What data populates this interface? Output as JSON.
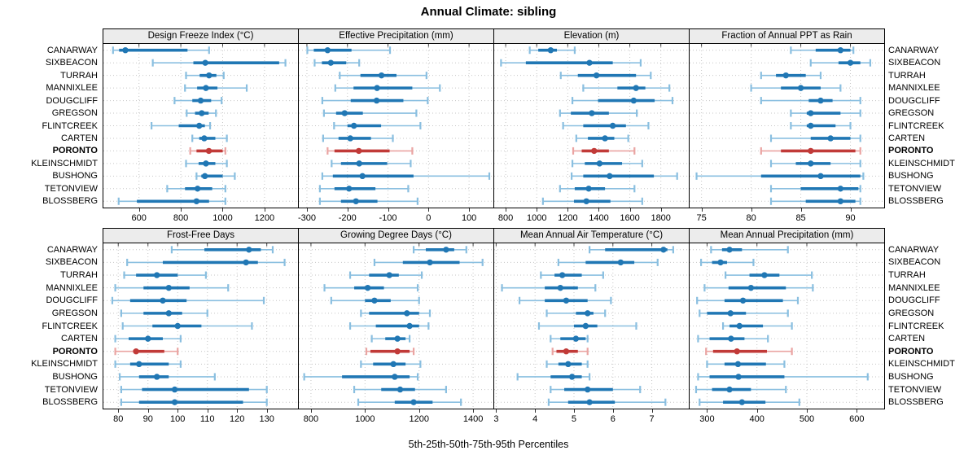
{
  "title": "Annual Climate: sibling",
  "xlabel": "5th-25th-50th-75th-95th Percentiles",
  "highlight_station": "PORONTO",
  "colors": {
    "series": "#2077b4",
    "series_light": "#8abfe0",
    "highlight": "#c13a38",
    "highlight_light": "#eaa4a2",
    "strip_bg": "#ececec",
    "grid": "#c6c6c6",
    "axis_text": "#000000"
  },
  "chart_data": {
    "type": "dotplot-percentiles",
    "percentiles": [
      5,
      25,
      50,
      75,
      95
    ],
    "stations": [
      "CANARWAY",
      "SIXBEACON",
      "TURRAH",
      "MANNIXLEE",
      "DOUGCLIFF",
      "GREGSON",
      "FLINTCREEK",
      "CARTEN",
      "PORONTO",
      "KLEINSCHMIDT",
      "BUSHONG",
      "TETONVIEW",
      "BLOSSBERG"
    ],
    "panels": [
      {
        "title": "Design Freeze Index (°C)",
        "row": 0,
        "col": 0,
        "xlim": [
          430,
          1360
        ],
        "ticks": [
          600,
          800,
          1000,
          1200
        ],
        "values": [
          [
            476,
            505,
            535,
            832,
            935
          ],
          [
            666,
            860,
            917,
            1270,
            1300
          ],
          [
            825,
            890,
            935,
            970,
            1005
          ],
          [
            820,
            878,
            920,
            975,
            1115
          ],
          [
            770,
            855,
            895,
            945,
            995
          ],
          [
            828,
            868,
            900,
            933,
            968
          ],
          [
            660,
            790,
            888,
            915,
            940
          ],
          [
            855,
            888,
            912,
            965,
            1020
          ],
          [
            845,
            875,
            934,
            1000,
            1013
          ],
          [
            825,
            885,
            920,
            965,
            1020
          ],
          [
            875,
            898,
            915,
            1000,
            1058
          ],
          [
            735,
            820,
            880,
            950,
            1013
          ],
          [
            503,
            590,
            875,
            935,
            1013
          ]
        ]
      },
      {
        "title": "Effective Precipitation (mm)",
        "row": 0,
        "col": 1,
        "xlim": [
          -320,
          160
        ],
        "ticks": [
          -300,
          -200,
          -100,
          0,
          100
        ],
        "values": [
          [
            -299,
            -283,
            -249,
            -190,
            -95
          ],
          [
            -281,
            -263,
            -241,
            -203,
            -171
          ],
          [
            -219,
            -168,
            -116,
            -79,
            -5
          ],
          [
            -230,
            -185,
            -127,
            -40,
            28
          ],
          [
            -262,
            -192,
            -128,
            -62,
            -2
          ],
          [
            -258,
            -228,
            -207,
            -162,
            -30
          ],
          [
            -233,
            -200,
            -184,
            -117,
            -20
          ],
          [
            -260,
            -222,
            -193,
            -142,
            -88
          ],
          [
            -249,
            -232,
            -172,
            -96,
            -40
          ],
          [
            -239,
            -216,
            -171,
            -102,
            -44
          ],
          [
            -262,
            -236,
            -163,
            -37,
            150
          ],
          [
            -268,
            -232,
            -196,
            -131,
            -50
          ],
          [
            -268,
            -216,
            -179,
            -126,
            -27
          ]
        ]
      },
      {
        "title": "Elevation (m)",
        "row": 0,
        "col": 2,
        "xlim": [
          726,
          1980
        ],
        "ticks": [
          800,
          1000,
          1200,
          1400,
          1600,
          1800
        ],
        "values": [
          [
            955,
            1010,
            1090,
            1130,
            1245
          ],
          [
            770,
            930,
            1340,
            1490,
            1670
          ],
          [
            1155,
            1265,
            1385,
            1640,
            1735
          ],
          [
            1300,
            1520,
            1640,
            1700,
            1855
          ],
          [
            1230,
            1395,
            1625,
            1760,
            1875
          ],
          [
            1150,
            1220,
            1355,
            1465,
            1645
          ],
          [
            1170,
            1300,
            1490,
            1575,
            1720
          ],
          [
            1255,
            1330,
            1440,
            1500,
            1590
          ],
          [
            1235,
            1290,
            1370,
            1465,
            1630
          ],
          [
            1230,
            1310,
            1405,
            1550,
            1680
          ],
          [
            1225,
            1300,
            1470,
            1755,
            1905
          ],
          [
            1150,
            1245,
            1335,
            1440,
            1630
          ],
          [
            1040,
            1240,
            1320,
            1475,
            1680
          ]
        ]
      },
      {
        "title": "Fraction of Annual PPT as Rain",
        "row": 0,
        "col": 3,
        "xlim": [
          73.8,
          93.4
        ],
        "ticks": [
          75,
          80,
          85,
          90
        ],
        "values": [
          [
            84,
            86.5,
            89,
            90,
            90.3
          ],
          [
            86,
            88.8,
            90,
            91,
            92
          ],
          [
            81,
            82.5,
            83.5,
            85.5,
            87
          ],
          [
            80,
            83,
            85,
            87,
            89
          ],
          [
            81,
            85.8,
            87,
            88.2,
            91
          ],
          [
            84,
            85.6,
            86,
            89,
            91
          ],
          [
            84,
            85.6,
            86,
            88.5,
            90
          ],
          [
            82,
            86,
            88,
            90,
            91
          ],
          [
            81,
            83,
            86,
            90.5,
            91
          ],
          [
            82,
            84.5,
            86,
            88,
            91
          ],
          [
            74.5,
            81,
            87,
            91,
            91.3
          ],
          [
            82,
            85,
            89,
            90.8,
            91
          ],
          [
            82,
            85.5,
            89,
            90.5,
            91
          ]
        ]
      },
      {
        "title": "Frost-Free Days",
        "row": 1,
        "col": 0,
        "xlim": [
          75,
          140.5
        ],
        "ticks": [
          80,
          90,
          100,
          110,
          120,
          130
        ],
        "values": [
          [
            98,
            109,
            124,
            128,
            132
          ],
          [
            83,
            95,
            123,
            127,
            136
          ],
          [
            82,
            86,
            93,
            100,
            109.5
          ],
          [
            79,
            88.5,
            97,
            104,
            117
          ],
          [
            78,
            84,
            95,
            103,
            129
          ],
          [
            81,
            88.5,
            97,
            101.5,
            110
          ],
          [
            81.5,
            91.5,
            100,
            108,
            125
          ],
          [
            79,
            83.5,
            90,
            95,
            101
          ],
          [
            79,
            85,
            86,
            95.5,
            100
          ],
          [
            79,
            84,
            87,
            97,
            101
          ],
          [
            80.5,
            87,
            93,
            97,
            112.5
          ],
          [
            81,
            88,
            99,
            124,
            130
          ],
          [
            81,
            87,
            99,
            122,
            130
          ]
        ]
      },
      {
        "title": "Growing Degree Days (°C)",
        "row": 1,
        "col": 1,
        "xlim": [
          755,
          1475
        ],
        "ticks": [
          800,
          1000,
          1200,
          1400
        ],
        "values": [
          [
            1180,
            1225,
            1300,
            1330,
            1375
          ],
          [
            1035,
            1140,
            1240,
            1350,
            1435
          ],
          [
            945,
            1015,
            1090,
            1125,
            1210
          ],
          [
            850,
            960,
            1010,
            1070,
            1195
          ],
          [
            875,
            1000,
            1035,
            1095,
            1200
          ],
          [
            985,
            1015,
            1155,
            1200,
            1240
          ],
          [
            945,
            1040,
            1165,
            1200,
            1235
          ],
          [
            1025,
            1075,
            1120,
            1150,
            1165
          ],
          [
            1005,
            1020,
            1120,
            1165,
            1180
          ],
          [
            985,
            1030,
            1105,
            1150,
            1205
          ],
          [
            775,
            915,
            1110,
            1165,
            1195
          ],
          [
            960,
            1060,
            1130,
            1185,
            1300
          ],
          [
            975,
            1110,
            1180,
            1250,
            1355
          ]
        ]
      },
      {
        "title": "Mean Annual Air Temperature (°C)",
        "row": 1,
        "col": 2,
        "xlim": [
          2.95,
          7.95
        ],
        "ticks": [
          3,
          4,
          5,
          6,
          7
        ],
        "values": [
          [
            5.4,
            5.8,
            7.3,
            7.4,
            7.55
          ],
          [
            4.6,
            5.3,
            6.2,
            6.55,
            7.15
          ],
          [
            4.15,
            4.5,
            4.7,
            5.2,
            5.75
          ],
          [
            3.15,
            4.25,
            4.65,
            5.1,
            5.55
          ],
          [
            3.6,
            4.25,
            4.8,
            5.35,
            5.95
          ],
          [
            4.3,
            5.05,
            5.35,
            5.5,
            5.8
          ],
          [
            4.1,
            5.0,
            5.3,
            5.6,
            6.6
          ],
          [
            4.4,
            4.65,
            5.05,
            5.3,
            5.35
          ],
          [
            4.45,
            4.55,
            4.8,
            5.1,
            5.35
          ],
          [
            4.3,
            4.6,
            4.85,
            5.2,
            5.35
          ],
          [
            3.55,
            4.4,
            4.95,
            5.2,
            5.4
          ],
          [
            4.4,
            4.75,
            5.35,
            6.0,
            6.7
          ],
          [
            4.35,
            4.85,
            5.4,
            6.05,
            7.35
          ]
        ]
      },
      {
        "title": "Mean Annual Precipitation (mm)",
        "row": 1,
        "col": 3,
        "xlim": [
          265,
          655
        ],
        "ticks": [
          300,
          400,
          500,
          600
        ],
        "values": [
          [
            308,
            330,
            345,
            370,
            462
          ],
          [
            288,
            310,
            327,
            340,
            393
          ],
          [
            337,
            385,
            415,
            445,
            510
          ],
          [
            295,
            343,
            388,
            458,
            512
          ],
          [
            280,
            335,
            372,
            452,
            482
          ],
          [
            285,
            300,
            347,
            378,
            462
          ],
          [
            332,
            345,
            365,
            412,
            470
          ],
          [
            282,
            305,
            348,
            375,
            422
          ],
          [
            298,
            312,
            360,
            420,
            470
          ],
          [
            300,
            335,
            362,
            418,
            455
          ],
          [
            282,
            305,
            363,
            455,
            622
          ],
          [
            278,
            310,
            345,
            388,
            458
          ],
          [
            285,
            332,
            370,
            417,
            485
          ]
        ]
      }
    ]
  }
}
